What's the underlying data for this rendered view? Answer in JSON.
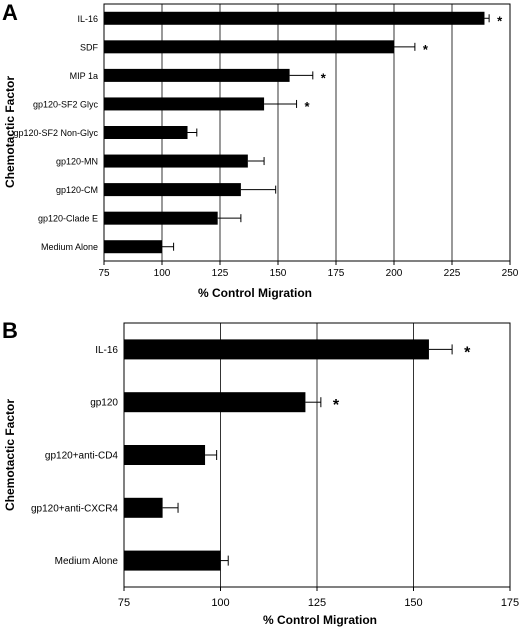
{
  "chart_data": [
    {
      "panel": "A",
      "type": "bar",
      "orientation": "horizontal",
      "categories": [
        "IL-16",
        "SDF",
        "MIP 1a",
        "gp120-SF2 Glyc",
        "gp120-SF2 Non-Glyc",
        "gp120-MN",
        "gp120-CM",
        "gp120-Clade E",
        "Medium Alone"
      ],
      "values": [
        239,
        200,
        155,
        144,
        111,
        137,
        134,
        124,
        100
      ],
      "errors": [
        2,
        9,
        10,
        14,
        4,
        7,
        15,
        10,
        5
      ],
      "significant": [
        true,
        true,
        true,
        true,
        false,
        false,
        false,
        false,
        false
      ],
      "significance_marker": "*",
      "xlabel": "% Control Migration",
      "ylabel": "Chemotactic Factor",
      "xlim": [
        75,
        250
      ],
      "xticks": [
        75,
        100,
        125,
        150,
        175,
        200,
        225,
        250
      ],
      "grid": "vertical"
    },
    {
      "panel": "B",
      "type": "bar",
      "orientation": "horizontal",
      "categories": [
        "IL-16",
        "gp120",
        "gp120+anti-CD4",
        "gp120+anti-CXCR4",
        "Medium Alone"
      ],
      "values": [
        154,
        122,
        96,
        85,
        100
      ],
      "errors": [
        6,
        4,
        3,
        4,
        2
      ],
      "significant": [
        true,
        true,
        false,
        false,
        false
      ],
      "significance_marker": "*",
      "xlabel": "% Control Migration",
      "ylabel": "Chemotactic Factor",
      "xlim": [
        75,
        175
      ],
      "xticks": [
        75,
        100,
        125,
        150,
        175
      ],
      "grid": "vertical"
    }
  ]
}
